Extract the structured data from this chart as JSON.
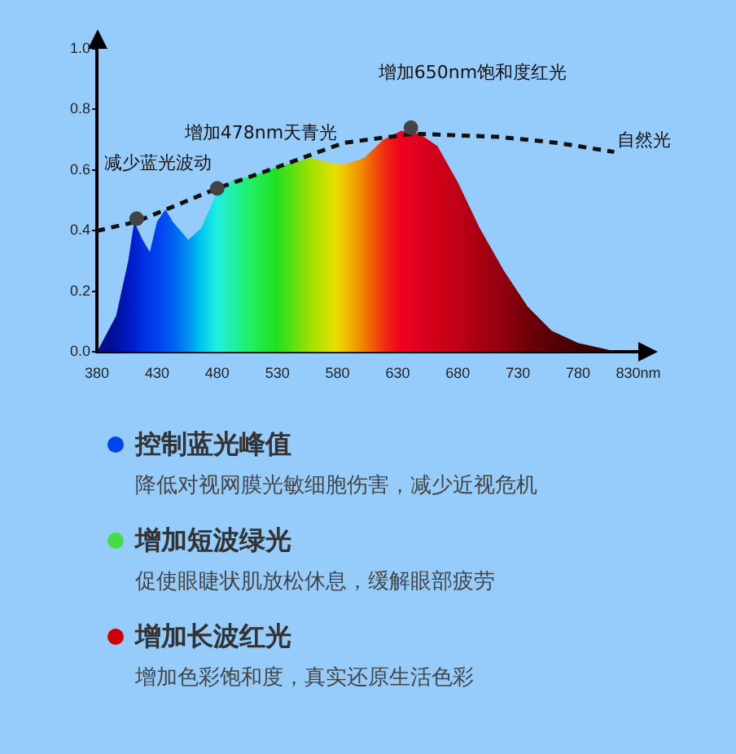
{
  "chart_data": {
    "type": "area",
    "xlim": [
      380,
      830
    ],
    "xticks": [
      380,
      430,
      480,
      530,
      580,
      630,
      680,
      730,
      780,
      {
        "value": 830,
        "label": "830nm"
      }
    ],
    "ylim": [
      0,
      1
    ],
    "yticks": [
      {
        "value": 0,
        "label": "0.0"
      },
      0.2,
      0.4,
      0.6,
      0.8,
      {
        "value": 1,
        "label": "1.0"
      }
    ],
    "grid": false,
    "legend": false,
    "series": [
      {
        "x": [
          380,
          396,
          406,
          411,
          418,
          424,
          430,
          437,
          443,
          456,
          467,
          480,
          494,
          509,
          529,
          558,
          578,
          587,
          602,
          618,
          633,
          648,
          663,
          680,
          698,
          718,
          738,
          758,
          780,
          808,
          823
        ],
        "values": [
          0,
          0.12,
          0.3,
          0.43,
          0.37,
          0.33,
          0.43,
          0.47,
          0.43,
          0.37,
          0.41,
          0.53,
          0.57,
          0.58,
          0.61,
          0.64,
          0.62,
          0.62,
          0.64,
          0.7,
          0.73,
          0.72,
          0.68,
          0.56,
          0.41,
          0.27,
          0.15,
          0.07,
          0.03,
          0.005,
          0
        ],
        "colors": [
          "#0a0a80",
          "#0010a0",
          "#0018c0",
          "#0020d0",
          "#0030e0",
          "#0038e8",
          "#0040f0",
          "#0050f0",
          "#0060f0",
          "#0090f0",
          "#00c8f0",
          "#20f0e0",
          "#20f0a0",
          "#20f060",
          "#20e020",
          "#a0e000",
          "#e8e000",
          "#f0c000",
          "#f08000",
          "#f03010",
          "#f00020",
          "#e00020",
          "#d00018",
          "#c00018",
          "#a80010",
          "#900010",
          "#700008",
          "#580008",
          "#400005",
          "#300005",
          "#280005"
        ]
      },
      {
        "type": "line",
        "line_style": "dashed",
        "marker": "none",
        "color": "#111111",
        "x": [
          380,
          413,
          480,
          530,
          585,
          643,
          713,
          763,
          810
        ],
        "values": [
          0.4,
          0.43,
          0.54,
          0.61,
          0.69,
          0.72,
          0.71,
          0.69,
          0.66
        ]
      },
      {
        "type": "scatter",
        "marker": "circle",
        "color": "#444444",
        "x": [
          413,
          480,
          641
        ],
        "values": [
          0.44,
          0.54,
          0.74
        ]
      }
    ],
    "annotations": [
      {
        "text": "减少蓝光波动",
        "x": 413,
        "y": 0.44
      },
      {
        "text": "增加478nm天青光",
        "x": 480,
        "y": 0.54
      },
      {
        "text": "增加650nm饱和度红光",
        "x": 641,
        "y": 0.74
      },
      {
        "text": "自然光",
        "x": 810,
        "y": 0.66
      },
      "控制蓝光峰值",
      "降低对视网膜光敏细胞伤害，减少近视危机",
      "增加短波绿光",
      "促使眼睫状肌放松休息，缓解眼部疲劳",
      "增加长波红光",
      "增加色彩饱和度，真实还原生活色彩"
    ]
  }
}
